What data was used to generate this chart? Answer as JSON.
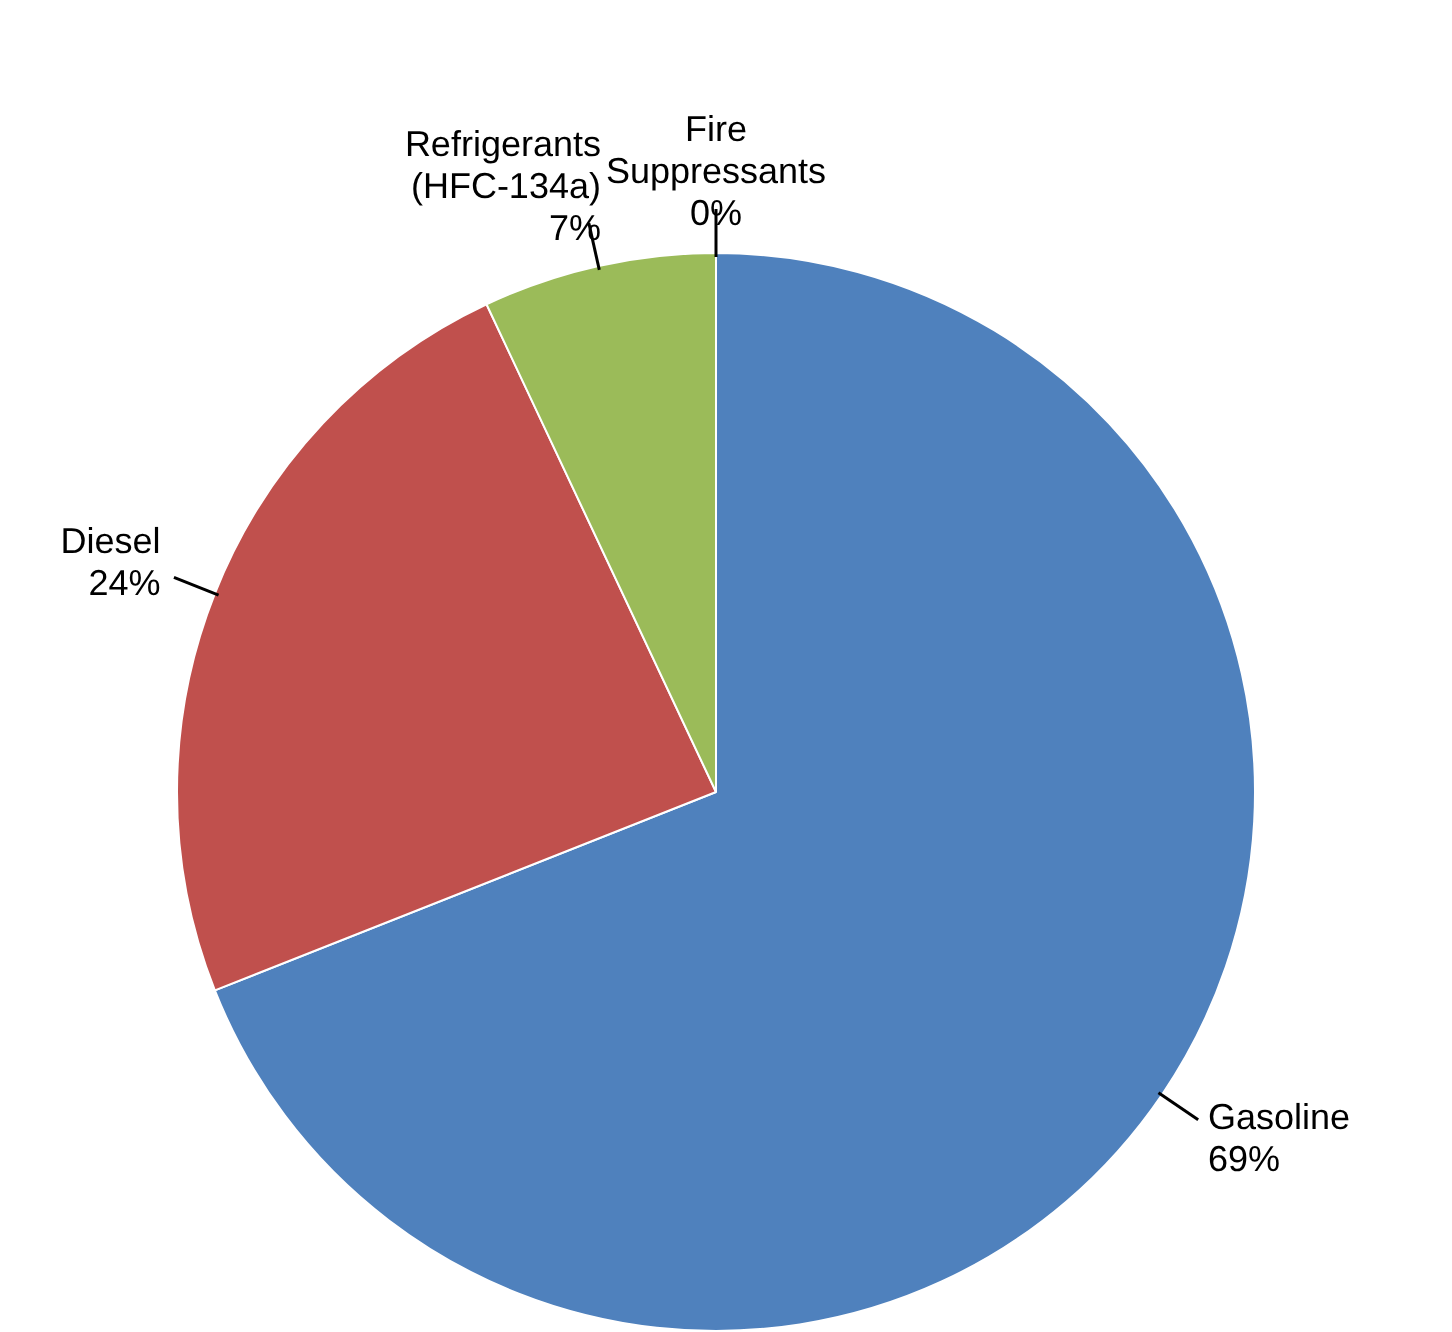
{
  "chart_data": {
    "type": "pie",
    "categories": [
      "Gasoline",
      "Diesel",
      "Refrigerants (HFC-134a)",
      "Fire Suppressants"
    ],
    "values": [
      69,
      24,
      7,
      0
    ],
    "colors": [
      "#4f81bd",
      "#c0504d",
      "#9bbb59",
      "#8064a2"
    ],
    "value_labels": [
      "69%",
      "24%",
      "7%",
      "0%"
    ],
    "legend": false
  }
}
